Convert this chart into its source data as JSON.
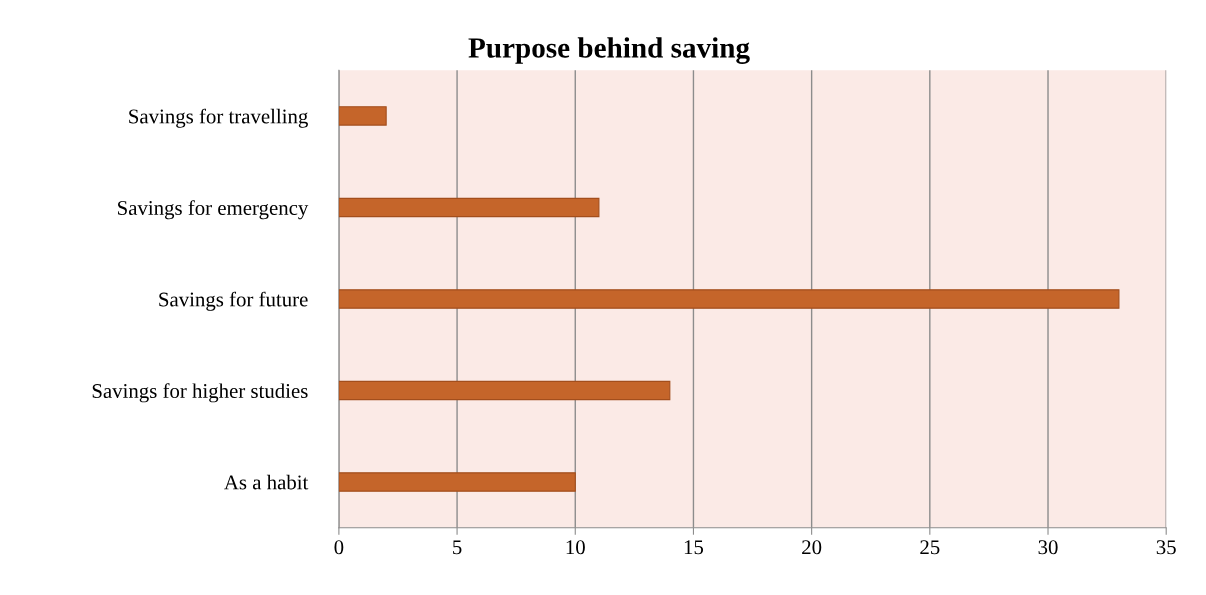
{
  "chart_data": {
    "type": "bar",
    "orientation": "horizontal",
    "title": "Purpose behind saving",
    "categories": [
      "Savings for travelling",
      "Savings for emergency",
      "Savings for future",
      "Savings for higher studies",
      "As a habit"
    ],
    "values": [
      2,
      11,
      33,
      14,
      10
    ],
    "color": "#c5652a",
    "xlim": [
      0,
      35
    ],
    "xticks": [
      0,
      5,
      10,
      15,
      20,
      25,
      30,
      35
    ],
    "grid": "x",
    "legend": false
  }
}
